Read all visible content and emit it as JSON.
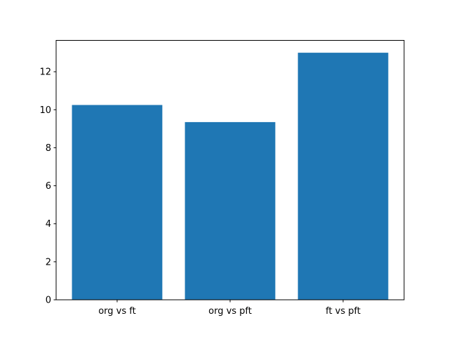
{
  "figure": {
    "background": "#ffffff"
  },
  "chart_data": {
    "type": "bar",
    "title": "",
    "xlabel": "",
    "ylabel": "",
    "categories": [
      "org vs ft",
      "org vs pft",
      "ft vs pft"
    ],
    "values": [
      10.25,
      9.35,
      13.0
    ],
    "ylim": [
      0,
      13.65
    ],
    "yticks": [
      0,
      2,
      4,
      6,
      8,
      10,
      12
    ],
    "bar_color": "#1f77b4",
    "axis_color": "#000000",
    "tick_label_color": "#000000",
    "grid": false,
    "legend": null,
    "bar_width_fraction": 0.8
  }
}
